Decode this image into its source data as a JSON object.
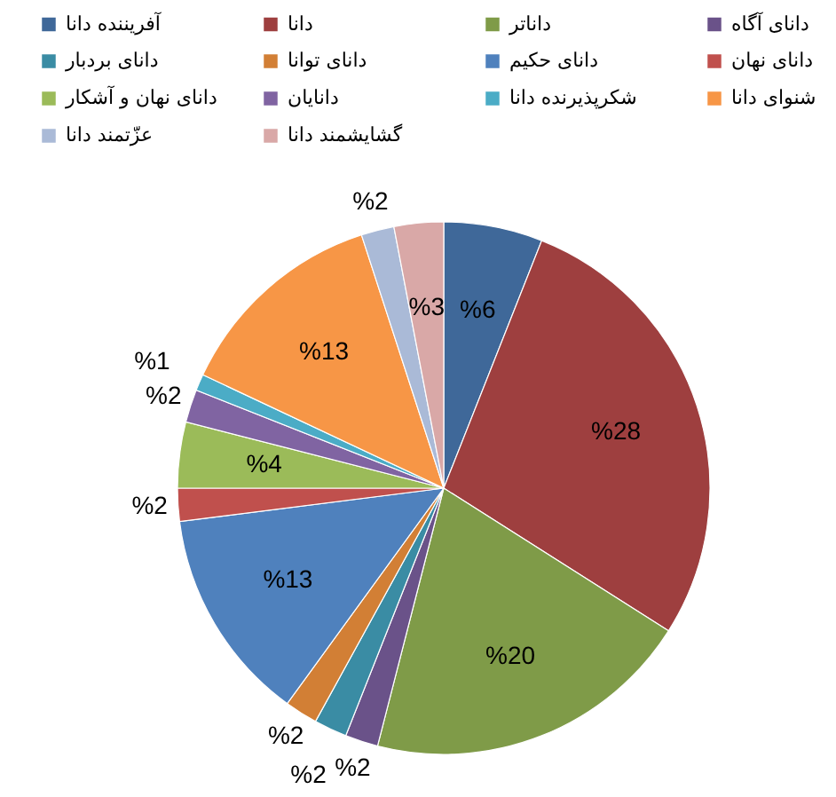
{
  "chart_data": {
    "type": "pie",
    "categories": [
      "آفریننده دانا",
      "دانا",
      "داناتر",
      "دانای آگاه",
      "دانای بردبار",
      "دانای توانا",
      "دانای حکیم",
      "دانای نهان",
      "دانای نهان و آشکار",
      "دانایان",
      "شکرپذیرنده دانا",
      "شنوای دانا",
      "عزّتمند دانا",
      "گشایشمند دانا"
    ],
    "values": [
      6,
      28,
      20,
      2,
      2,
      2,
      13,
      2,
      4,
      2,
      1,
      13,
      2,
      3
    ],
    "colors": [
      "#3f6899",
      "#9e3f3f",
      "#7f9b48",
      "#6a5289",
      "#3a8ca4",
      "#d27f35",
      "#4f81bd",
      "#c0504d",
      "#9bbb59",
      "#8064a2",
      "#4bacc6",
      "#f79646",
      "#aabad7",
      "#d9a8a7"
    ],
    "value_labels": [
      "%6",
      "%28",
      "%20",
      "%2",
      "%2",
      "%2",
      "%13",
      "%2",
      "%4",
      "%2",
      "%1",
      "%13",
      "%2",
      "%3"
    ],
    "legend": "top"
  }
}
